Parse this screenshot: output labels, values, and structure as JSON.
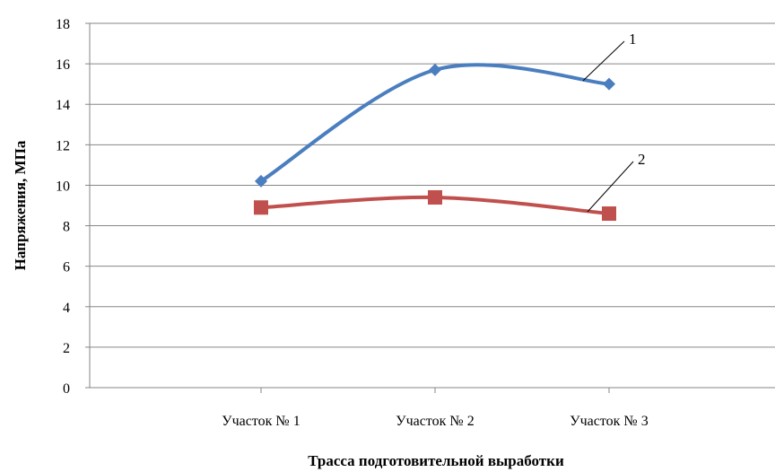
{
  "chart_data": {
    "type": "line",
    "title": "",
    "xlabel": "Трасса подготовительной выработки",
    "ylabel": "Напряжения, МПа",
    "categories": [
      "Участок № 1",
      "Участок № 2",
      "Участок № 3"
    ],
    "ylim": [
      0,
      18
    ],
    "yticks": [
      0,
      2,
      4,
      6,
      8,
      10,
      12,
      14,
      16,
      18
    ],
    "grid": "horizontal",
    "legend": "none",
    "series": [
      {
        "label": "1",
        "color": "#4a7ebf",
        "marker": "diamond",
        "values": [
          10.2,
          15.7,
          15.0
        ]
      },
      {
        "label": "2",
        "color": "#c0504d",
        "marker": "square",
        "values": [
          8.9,
          9.4,
          8.6
        ]
      }
    ]
  }
}
